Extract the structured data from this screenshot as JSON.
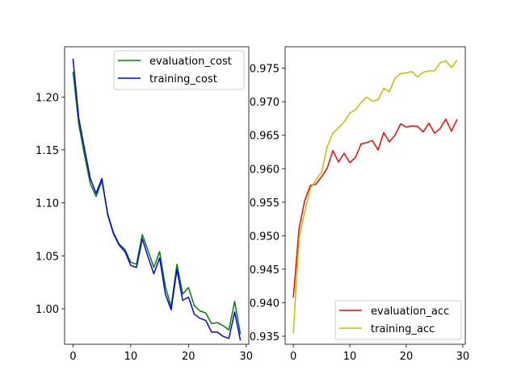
{
  "chart_data": [
    {
      "type": "line",
      "title": "",
      "xlabel": "",
      "ylabel": "",
      "xlim": [
        -1.45,
        30.45
      ],
      "ylim": [
        0.9665,
        1.2474
      ],
      "xticks": [
        0,
        10,
        20,
        30
      ],
      "yticks": [
        1.0,
        1.05,
        1.1,
        1.15,
        1.2
      ],
      "ytick_labels": [
        "1.00",
        "1.05",
        "1.10",
        "1.15",
        "1.20"
      ],
      "legend_position": "top-right",
      "grid": false,
      "x": [
        0,
        1,
        2,
        3,
        4,
        5,
        6,
        7,
        8,
        9,
        10,
        11,
        12,
        13,
        14,
        15,
        16,
        17,
        18,
        19,
        20,
        21,
        22,
        23,
        24,
        25,
        26,
        27,
        28,
        29
      ],
      "series": [
        {
          "name": "evaluation_cost",
          "color": "#008000",
          "values": [
            1.224,
            1.174,
            1.145,
            1.118,
            1.106,
            1.121,
            1.09,
            1.072,
            1.061,
            1.056,
            1.044,
            1.042,
            1.07,
            1.055,
            1.039,
            1.054,
            1.021,
            1.002,
            1.042,
            1.014,
            1.02,
            1.003,
            0.998,
            0.996,
            0.986,
            0.987,
            0.984,
            0.98,
            1.007,
            0.976
          ]
        },
        {
          "name": "training_cost",
          "color": "#0000ff",
          "values": [
            1.236,
            1.18,
            1.151,
            1.123,
            1.109,
            1.123,
            1.089,
            1.071,
            1.06,
            1.054,
            1.041,
            1.039,
            1.066,
            1.049,
            1.033,
            1.048,
            1.014,
            0.999,
            1.037,
            1.008,
            1.011,
            0.995,
            0.991,
            0.989,
            0.978,
            0.978,
            0.974,
            0.972,
            0.997,
            0.97
          ]
        }
      ]
    },
    {
      "type": "line",
      "title": "",
      "xlabel": "",
      "ylabel": "",
      "xlim": [
        -1.45,
        30.45
      ],
      "ylim": [
        0.9338,
        0.9782
      ],
      "xticks": [
        0,
        10,
        20,
        30
      ],
      "yticks": [
        0.935,
        0.94,
        0.945,
        0.95,
        0.955,
        0.96,
        0.965,
        0.97,
        0.975
      ],
      "ytick_labels": [
        "0.935",
        "0.940",
        "0.945",
        "0.950",
        "0.955",
        "0.960",
        "0.965",
        "0.970",
        "0.975"
      ],
      "legend_position": "bottom-right",
      "grid": false,
      "x": [
        0,
        1,
        2,
        3,
        4,
        5,
        6,
        7,
        8,
        9,
        10,
        11,
        12,
        13,
        14,
        15,
        16,
        17,
        18,
        19,
        20,
        21,
        22,
        23,
        24,
        25,
        26,
        27,
        28,
        29
      ],
      "series": [
        {
          "name": "evaluation_acc",
          "color": "#ff0000",
          "values": [
            0.9408,
            0.951,
            0.9552,
            0.9575,
            0.9577,
            0.9588,
            0.9601,
            0.9627,
            0.961,
            0.9623,
            0.9609,
            0.9617,
            0.9637,
            0.9639,
            0.9642,
            0.9628,
            0.9654,
            0.964,
            0.965,
            0.9667,
            0.9662,
            0.9664,
            0.9663,
            0.9655,
            0.9668,
            0.9653,
            0.966,
            0.9674,
            0.9656,
            0.9674
          ]
        },
        {
          "name": "training_acc",
          "color": "#bfbf00",
          "values": [
            0.9355,
            0.9495,
            0.9535,
            0.957,
            0.9583,
            0.9595,
            0.9633,
            0.9653,
            0.9661,
            0.967,
            0.9683,
            0.9688,
            0.9699,
            0.9707,
            0.9701,
            0.9703,
            0.972,
            0.9715,
            0.9735,
            0.9742,
            0.9743,
            0.9745,
            0.9737,
            0.9744,
            0.9746,
            0.9746,
            0.9758,
            0.9761,
            0.9751,
            0.9762
          ]
        }
      ]
    }
  ]
}
